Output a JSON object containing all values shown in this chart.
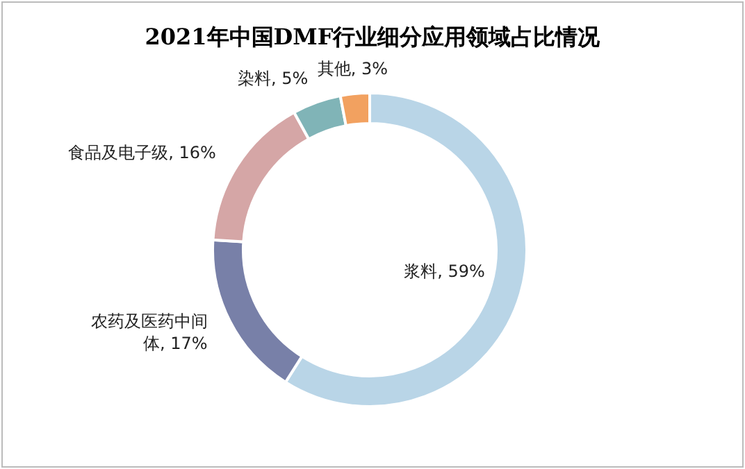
{
  "chart_data": {
    "type": "donut",
    "title": "2021年中国DMF行业细分应用领域占比情况",
    "categories": [
      "浆料",
      "农药及医药中间体",
      "食品及电子级",
      "染料",
      "其他"
    ],
    "values": [
      59,
      17,
      16,
      5,
      3
    ],
    "value_labels": [
      "59%",
      "17%",
      "16%",
      "5%",
      "3%"
    ],
    "colors": [
      "#b9d5e7",
      "#7880a8",
      "#d5a6a6",
      "#80b4b7",
      "#f2a160"
    ]
  }
}
